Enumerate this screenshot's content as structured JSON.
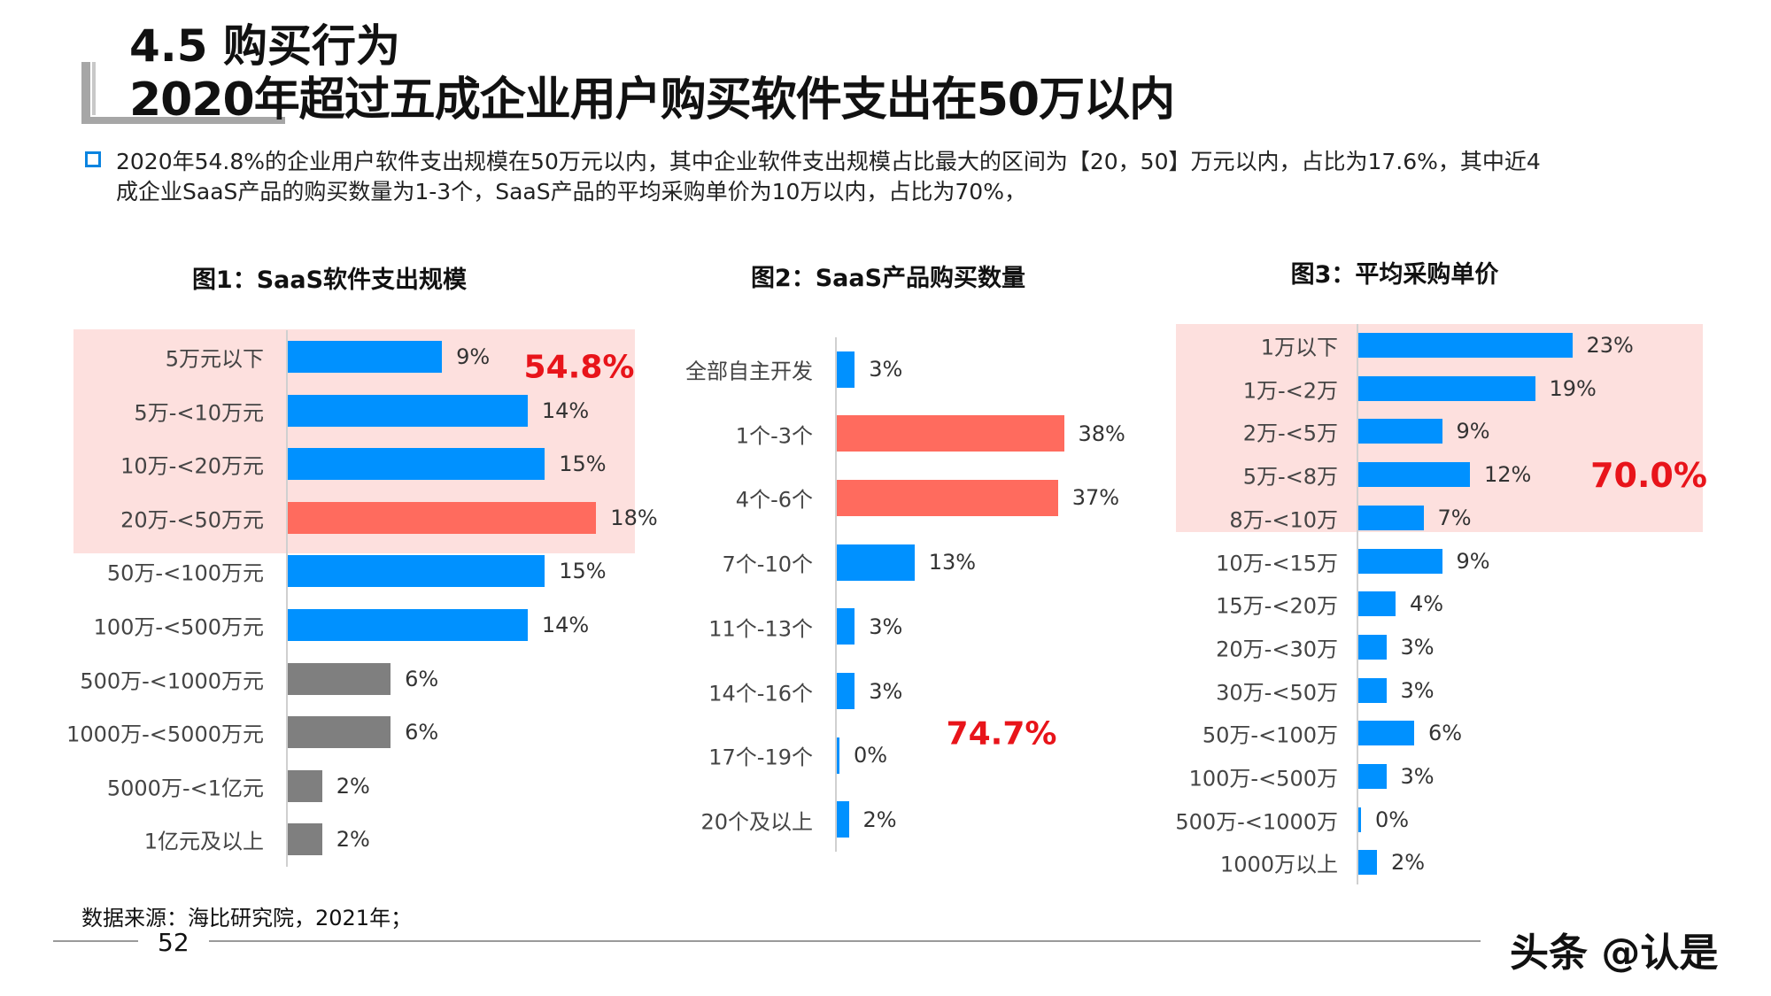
{
  "header": {
    "section": "4.5 购买行为",
    "headline": "2020年超过五成企业用户购买软件支出在50万以内"
  },
  "summary": {
    "line1": "2020年54.8%的企业用户软件支出规模在50万元以内，其中企业软件支出规模占比最大的区间为【20，50】万元以内，占比为17.6%，其中近4",
    "line2": "成企业SaaS产品的购买数量为1-3个，SaaS产品的平均采购单价为10万以内，占比为70%，"
  },
  "colors": {
    "blue": "#0091ff",
    "red": "#ff6b5e",
    "gray": "#7f7f7f",
    "highlight": "#fde0de",
    "accent_text": "#e8141a"
  },
  "chart_data": [
    {
      "type": "bar",
      "orientation": "horizontal",
      "title": "图1：SaaS软件支出规模",
      "categories": [
        "5万元以下",
        "5万-<10万元",
        "10万-<20万元",
        "20万-<50万元",
        "50万-<100万元",
        "100万-<500万元",
        "500万-<1000万元",
        "1000万-<5000万元",
        "5000万-<1亿元",
        "1亿元及以上"
      ],
      "values": [
        9,
        14,
        15,
        18,
        15,
        14,
        6,
        6,
        2,
        2
      ],
      "unit": "%",
      "bar_colors": [
        "blue",
        "blue",
        "blue",
        "red",
        "blue",
        "blue",
        "gray",
        "gray",
        "gray",
        "gray"
      ],
      "highlight_rows": 4,
      "annotation": "54.8%",
      "xlim": [
        0,
        20
      ],
      "grid": false
    },
    {
      "type": "bar",
      "orientation": "horizontal",
      "title": "图2：SaaS产品购买数量",
      "categories": [
        "全部自主开发",
        "1个-3个",
        "4个-6个",
        "7个-10个",
        "11个-13个",
        "14个-16个",
        "17个-19个",
        "20个及以上"
      ],
      "values": [
        3,
        38,
        37,
        13,
        3,
        3,
        0,
        2
      ],
      "unit": "%",
      "bar_colors": [
        "blue",
        "red",
        "red",
        "blue",
        "blue",
        "blue",
        "blue",
        "blue"
      ],
      "highlight_rows": 0,
      "annotation": "74.7%",
      "xlim": [
        0,
        40
      ],
      "grid": false
    },
    {
      "type": "bar",
      "orientation": "horizontal",
      "title": "图3：平均采购单价",
      "categories": [
        "1万以下",
        "1万-<2万",
        "2万-<5万",
        "5万-<8万",
        "8万-<10万",
        "10万-<15万",
        "15万-<20万",
        "20万-<30万",
        "30万-<50万",
        "50万-<100万",
        "100万-<500万",
        "500万-<1000万",
        "1000万以上"
      ],
      "values": [
        23,
        19,
        9,
        12,
        7,
        9,
        4,
        3,
        3,
        6,
        3,
        0,
        2
      ],
      "unit": "%",
      "bar_colors": [
        "blue",
        "blue",
        "blue",
        "blue",
        "blue",
        "blue",
        "blue",
        "blue",
        "blue",
        "blue",
        "blue",
        "blue",
        "blue"
      ],
      "highlight_rows": 5,
      "annotation": "70.0%",
      "xlim": [
        0,
        25
      ],
      "grid": false
    }
  ],
  "footer": {
    "source": "数据来源：海比研究院，2021年；",
    "page_number": "52",
    "watermark": "头条 @认是"
  }
}
